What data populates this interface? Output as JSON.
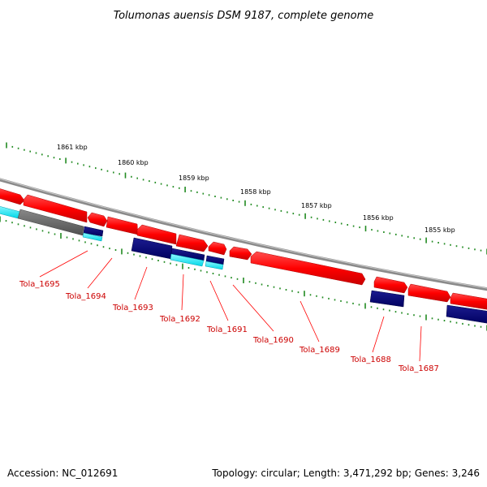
{
  "title": "Tolumonas auensis DSM 9187, complete genome",
  "footer": {
    "accession": "Accession: NC_012691",
    "stats": "Topology: circular; Length: 3,471,292 bp; Genes: 3,246"
  },
  "colors": {
    "forward_gene": "#ff0000",
    "reverse_gene": "#000080",
    "rna_feature": "#00e5ee",
    "pseudo_feature": "#666666",
    "backbone": "#888888",
    "ruler_ticks": "#228b22",
    "label_text": "#cc0000",
    "label_line": "#ff0000"
  },
  "ruler": {
    "ticks": [
      {
        "kbp": 1861,
        "label": "1861 kbp"
      },
      {
        "kbp": 1860,
        "label": "1860 kbp"
      },
      {
        "kbp": 1859,
        "label": "1859 kbp"
      },
      {
        "kbp": 1858,
        "label": "1858 kbp"
      },
      {
        "kbp": 1857,
        "label": "1857 kbp"
      },
      {
        "kbp": 1856,
        "label": "1856 kbp"
      },
      {
        "kbp": 1855,
        "label": "1855 kbp"
      }
    ]
  },
  "genes": [
    {
      "label": "Tola_1695"
    },
    {
      "label": "Tola_1694"
    },
    {
      "label": "Tola_1693"
    },
    {
      "label": "Tola_1692"
    },
    {
      "label": "Tola_1691"
    },
    {
      "label": "Tola_1690"
    },
    {
      "label": "Tola_1689"
    },
    {
      "label": "Tola_1688"
    },
    {
      "label": "Tola_1687"
    }
  ]
}
